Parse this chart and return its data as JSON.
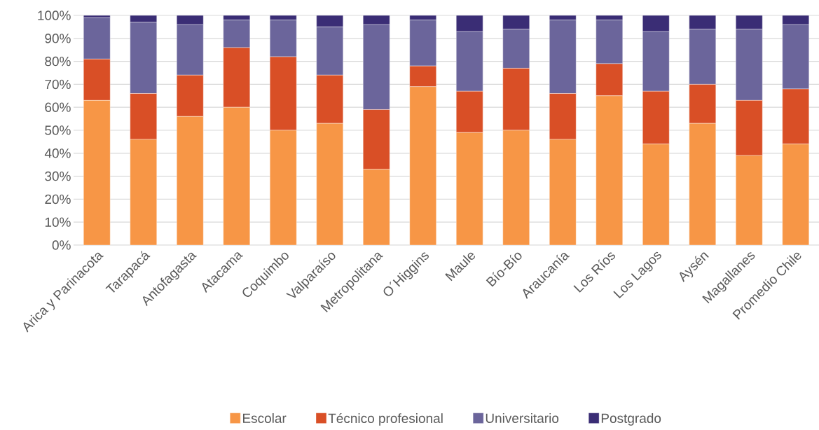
{
  "chart_data": {
    "type": "bar",
    "stacked": true,
    "grid": "y",
    "legend": "bottom",
    "categories": [
      "Arica y Parinacota",
      "Tarapacá",
      "Antofagasta",
      "Atacama",
      "Coquimbo",
      "Valparaíso",
      "Metropolitana",
      "O´Higgins",
      "Maule",
      "Bío-Bío",
      "Araucanía",
      "Los Ríos",
      "Los Lagos",
      "Aysén",
      "Magallanes",
      "Promedio Chile"
    ],
    "ylim": [
      0,
      100
    ],
    "yticks": [
      {
        "value": 0,
        "label": "0%"
      },
      {
        "value": 10,
        "label": "10%"
      },
      {
        "value": 20,
        "label": "20%"
      },
      {
        "value": 30,
        "label": "30%"
      },
      {
        "value": 40,
        "label": "40%"
      },
      {
        "value": 50,
        "label": "50%"
      },
      {
        "value": 60,
        "label": "60%"
      },
      {
        "value": 70,
        "label": "70%"
      },
      {
        "value": 80,
        "label": "80%"
      },
      {
        "value": 90,
        "label": "90%"
      },
      {
        "value": 100,
        "label": "100%"
      }
    ],
    "series": [
      {
        "name": "Escolar",
        "color": "#f79646",
        "values": [
          63,
          46,
          56,
          60,
          50,
          53,
          33,
          69,
          49,
          50,
          46,
          65,
          44,
          53,
          39,
          44
        ]
      },
      {
        "name": "Técnico profesional",
        "color": "#d94f26",
        "values": [
          18,
          20,
          18,
          26,
          32,
          21,
          26,
          9,
          18,
          27,
          20,
          14,
          23,
          17,
          24,
          24
        ]
      },
      {
        "name": "Universitario",
        "color": "#6b659b",
        "values": [
          18,
          31,
          22,
          12,
          16,
          21,
          37,
          20,
          26,
          17,
          32,
          19,
          26,
          24,
          31,
          28
        ]
      },
      {
        "name": "Postgrado",
        "color": "#3a2d75",
        "values": [
          1,
          3,
          4,
          2,
          2,
          5,
          4,
          2,
          7,
          6,
          2,
          2,
          7,
          6,
          6,
          4
        ]
      }
    ]
  }
}
